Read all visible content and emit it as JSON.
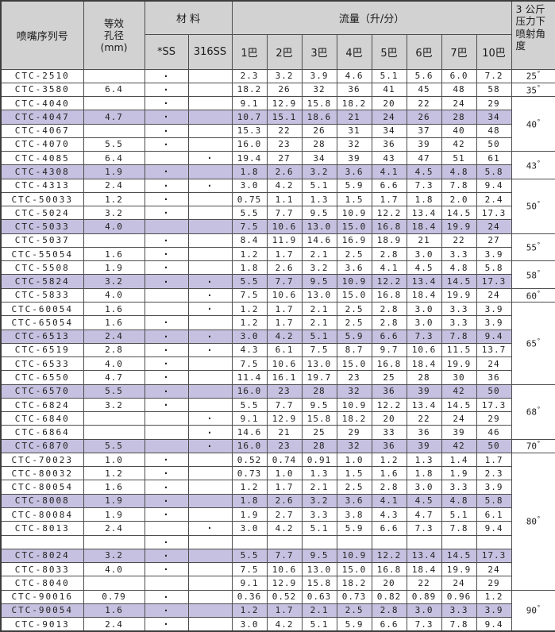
{
  "header": {
    "serial": "喷嘴序列号",
    "aperture": "等效\n孔径\n(mm)",
    "material": "材  料",
    "material_ss": "*SS",
    "material_316ss": "316SS",
    "flow": "流量（升/分）",
    "pressures": [
      "1巴",
      "2巴",
      "3巴",
      "4巴",
      "5巴",
      "6巴",
      "7巴",
      "10巴"
    ],
    "angle": "3 公斤\n压力下\n喷射角\n度"
  },
  "symbols": {
    "material_dot": "·",
    "degree": "°"
  },
  "colors": {
    "header_bg": "#d2d2d2",
    "highlight_bg": "#c6c1e0",
    "border": "#4d4d4d",
    "text": "#1f1f1f"
  },
  "angle_groups": [
    {
      "label": "25",
      "span": 1
    },
    {
      "label": "35",
      "span": 1
    },
    {
      "label": "40",
      "span": 4
    },
    {
      "label": "43",
      "span": 2
    },
    {
      "label": "50",
      "span": 4
    },
    {
      "label": "55",
      "span": 2
    },
    {
      "label": "58",
      "span": 2
    },
    {
      "label": "60",
      "span": 1
    },
    {
      "label": "65",
      "span": 6
    },
    {
      "label": "68",
      "span": 4
    },
    {
      "label": "70",
      "span": 1
    },
    {
      "label": "80",
      "span": 10
    },
    {
      "label": "90",
      "span": 3
    }
  ],
  "rows": [
    {
      "serial": "CTC-2510",
      "aperture": "",
      "ss": true,
      "ss316": false,
      "flows": [
        "2.3",
        "3.2",
        "3.9",
        "4.6",
        "5.1",
        "5.6",
        "6.0",
        "7.2"
      ],
      "highlight": false
    },
    {
      "serial": "CTC-3580",
      "aperture": "6.4",
      "ss": true,
      "ss316": false,
      "flows": [
        "18.2",
        "26",
        "32",
        "36",
        "41",
        "45",
        "48",
        "58"
      ],
      "highlight": false
    },
    {
      "serial": "CTC-4040",
      "aperture": "",
      "ss": true,
      "ss316": false,
      "flows": [
        "9.1",
        "12.9",
        "15.8",
        "18.2",
        "20",
        "22",
        "24",
        "29"
      ],
      "highlight": false
    },
    {
      "serial": "CTC-4047",
      "aperture": "4.7",
      "ss": true,
      "ss316": false,
      "flows": [
        "10.7",
        "15.1",
        "18.6",
        "21",
        "24",
        "26",
        "28",
        "34"
      ],
      "highlight": true
    },
    {
      "serial": "CTC-4067",
      "aperture": "",
      "ss": true,
      "ss316": false,
      "flows": [
        "15.3",
        "22",
        "26",
        "31",
        "34",
        "37",
        "40",
        "48"
      ],
      "highlight": false
    },
    {
      "serial": "CTC-4070",
      "aperture": "5.5",
      "ss": true,
      "ss316": false,
      "flows": [
        "16.0",
        "23",
        "28",
        "32",
        "36",
        "39",
        "42",
        "50"
      ],
      "highlight": false
    },
    {
      "serial": "CTC-4085",
      "aperture": "6.4",
      "ss": false,
      "ss316": true,
      "flows": [
        "19.4",
        "27",
        "34",
        "39",
        "43",
        "47",
        "51",
        "61"
      ],
      "highlight": false
    },
    {
      "serial": "CTC-4308",
      "aperture": "1.9",
      "ss": true,
      "ss316": false,
      "flows": [
        "1.8",
        "2.6",
        "3.2",
        "3.6",
        "4.1",
        "4.5",
        "4.8",
        "5.8"
      ],
      "highlight": true
    },
    {
      "serial": "CTC-4313",
      "aperture": "2.4",
      "ss": true,
      "ss316": true,
      "flows": [
        "3.0",
        "4.2",
        "5.1",
        "5.9",
        "6.6",
        "7.3",
        "7.8",
        "9.4"
      ],
      "highlight": false
    },
    {
      "serial": "CTC-50033",
      "aperture": "1.2",
      "ss": true,
      "ss316": false,
      "flows": [
        "0.75",
        "1.1",
        "1.3",
        "1.5",
        "1.7",
        "1.8",
        "2.0",
        "2.4"
      ],
      "highlight": false
    },
    {
      "serial": "CTC-5024",
      "aperture": "3.2",
      "ss": true,
      "ss316": false,
      "flows": [
        "5.5",
        "7.7",
        "9.5",
        "10.9",
        "12.2",
        "13.4",
        "14.5",
        "17.3"
      ],
      "highlight": false
    },
    {
      "serial": "CTC-5033",
      "aperture": "4.0",
      "ss": false,
      "ss316": false,
      "flows": [
        "7.5",
        "10.6",
        "13.0",
        "15.0",
        "16.8",
        "18.4",
        "19.9",
        "24"
      ],
      "highlight": true
    },
    {
      "serial": "CTC-5037",
      "aperture": "",
      "ss": true,
      "ss316": false,
      "flows": [
        "8.4",
        "11.9",
        "14.6",
        "16.9",
        "18.9",
        "21",
        "22",
        "27"
      ],
      "highlight": false
    },
    {
      "serial": "CTC-55054",
      "aperture": "1.6",
      "ss": true,
      "ss316": false,
      "flows": [
        "1.2",
        "1.7",
        "2.1",
        "2.5",
        "2.8",
        "3.0",
        "3.3",
        "3.9"
      ],
      "highlight": false
    },
    {
      "serial": "CTC-5508",
      "aperture": "1.9",
      "ss": true,
      "ss316": false,
      "flows": [
        "1.8",
        "2.6",
        "3.2",
        "3.6",
        "4.1",
        "4.5",
        "4.8",
        "5.8"
      ],
      "highlight": false
    },
    {
      "serial": "CTC-5824",
      "aperture": "3.2",
      "ss": true,
      "ss316": true,
      "flows": [
        "5.5",
        "7.7",
        "9.5",
        "10.9",
        "12.2",
        "13.4",
        "14.5",
        "17.3"
      ],
      "highlight": true
    },
    {
      "serial": "CTC-5833",
      "aperture": "4.0",
      "ss": false,
      "ss316": true,
      "flows": [
        "7.5",
        "10.6",
        "13.0",
        "15.0",
        "16.8",
        "18.4",
        "19.9",
        "24"
      ],
      "highlight": false
    },
    {
      "serial": "CTC-60054",
      "aperture": "1.6",
      "ss": false,
      "ss316": true,
      "flows": [
        "1.2",
        "1.7",
        "2.1",
        "2.5",
        "2.8",
        "3.0",
        "3.3",
        "3.9"
      ],
      "highlight": false
    },
    {
      "serial": "CTC-65054",
      "aperture": "1.6",
      "ss": true,
      "ss316": false,
      "flows": [
        "1.2",
        "1.7",
        "2.1",
        "2.5",
        "2.8",
        "3.0",
        "3.3",
        "3.9"
      ],
      "highlight": false
    },
    {
      "serial": "CTC-6513",
      "aperture": "2.4",
      "ss": true,
      "ss316": true,
      "flows": [
        "3.0",
        "4.2",
        "5.1",
        "5.9",
        "6.6",
        "7.3",
        "7.8",
        "9.4"
      ],
      "highlight": true
    },
    {
      "serial": "CTC-6519",
      "aperture": "2.8",
      "ss": true,
      "ss316": true,
      "flows": [
        "4.3",
        "6.1",
        "7.5",
        "8.7",
        "9.7",
        "10.6",
        "11.5",
        "13.7"
      ],
      "highlight": false
    },
    {
      "serial": "CTC-6533",
      "aperture": "4.0",
      "ss": true,
      "ss316": false,
      "flows": [
        "7.5",
        "10.6",
        "13.0",
        "15.0",
        "16.8",
        "18.4",
        "19.9",
        "24"
      ],
      "highlight": false
    },
    {
      "serial": "CTC-6550",
      "aperture": "4.7",
      "ss": true,
      "ss316": false,
      "flows": [
        "11.4",
        "16.1",
        "19.7",
        "23",
        "25",
        "28",
        "30",
        "36"
      ],
      "highlight": false
    },
    {
      "serial": "CTC-6570",
      "aperture": "5.5",
      "ss": true,
      "ss316": false,
      "flows": [
        "16.0",
        "23",
        "28",
        "32",
        "36",
        "39",
        "42",
        "50"
      ],
      "highlight": true
    },
    {
      "serial": "CTC-6824",
      "aperture": "3.2",
      "ss": true,
      "ss316": false,
      "flows": [
        "5.5",
        "7.7",
        "9.5",
        "10.9",
        "12.2",
        "13.4",
        "14.5",
        "17.3"
      ],
      "highlight": false
    },
    {
      "serial": "CTC-6840",
      "aperture": "",
      "ss": false,
      "ss316": true,
      "flows": [
        "9.1",
        "12.9",
        "15.8",
        "18.2",
        "20",
        "22",
        "24",
        "29"
      ],
      "highlight": false
    },
    {
      "serial": "CTC-6864",
      "aperture": "",
      "ss": false,
      "ss316": true,
      "flows": [
        "14.6",
        "21",
        "25",
        "29",
        "33",
        "36",
        "39",
        "46"
      ],
      "highlight": false
    },
    {
      "serial": "CTC-6870",
      "aperture": "5.5",
      "ss": false,
      "ss316": true,
      "flows": [
        "16.0",
        "23",
        "28",
        "32",
        "36",
        "39",
        "42",
        "50"
      ],
      "highlight": true
    },
    {
      "serial": "CTC-70023",
      "aperture": "1.0",
      "ss": true,
      "ss316": false,
      "flows": [
        "0.52",
        "0.74",
        "0.91",
        "1.0",
        "1.2",
        "1.3",
        "1.4",
        "1.7"
      ],
      "highlight": false
    },
    {
      "serial": "CTC-80032",
      "aperture": "1.2",
      "ss": true,
      "ss316": false,
      "flows": [
        "0.73",
        "1.0",
        "1.3",
        "1.5",
        "1.6",
        "1.8",
        "1.9",
        "2.3"
      ],
      "highlight": false
    },
    {
      "serial": "CTC-80054",
      "aperture": "1.6",
      "ss": true,
      "ss316": false,
      "flows": [
        "1.2",
        "1.7",
        "2.1",
        "2.5",
        "2.8",
        "3.0",
        "3.3",
        "3.9"
      ],
      "highlight": false
    },
    {
      "serial": "CTC-8008",
      "aperture": "1.9",
      "ss": true,
      "ss316": false,
      "flows": [
        "1.8",
        "2.6",
        "3.2",
        "3.6",
        "4.1",
        "4.5",
        "4.8",
        "5.8"
      ],
      "highlight": true
    },
    {
      "serial": "CTC-80084",
      "aperture": "1.9",
      "ss": true,
      "ss316": false,
      "flows": [
        "1.9",
        "2.7",
        "3.3",
        "3.8",
        "4.3",
        "4.7",
        "5.1",
        "6.1"
      ],
      "highlight": false
    },
    {
      "serial": "CTC-8013",
      "aperture": "2.4",
      "ss": false,
      "ss316": true,
      "flows": [
        "3.0",
        "4.2",
        "5.1",
        "5.9",
        "6.6",
        "7.3",
        "7.8",
        "9.4"
      ],
      "highlight": false
    },
    {
      "serial": "",
      "aperture": "",
      "ss": true,
      "ss316": false,
      "flows": [
        "",
        "",
        "",
        "",
        "",
        "",
        "",
        ""
      ],
      "highlight": false
    },
    {
      "serial": "CTC-8024",
      "aperture": "3.2",
      "ss": true,
      "ss316": false,
      "flows": [
        "5.5",
        "7.7",
        "9.5",
        "10.9",
        "12.2",
        "13.4",
        "14.5",
        "17.3"
      ],
      "highlight": true
    },
    {
      "serial": "CTC-8033",
      "aperture": "4.0",
      "ss": true,
      "ss316": false,
      "flows": [
        "7.5",
        "10.6",
        "13.0",
        "15.0",
        "16.8",
        "18.4",
        "19.9",
        "24"
      ],
      "highlight": false
    },
    {
      "serial": "CTC-8040",
      "aperture": "",
      "ss": false,
      "ss316": false,
      "flows": [
        "9.1",
        "12.9",
        "15.8",
        "18.2",
        "20",
        "22",
        "24",
        "29"
      ],
      "highlight": false
    },
    {
      "serial": "CTC-90016",
      "aperture": "0.79",
      "ss": true,
      "ss316": false,
      "flows": [
        "0.36",
        "0.52",
        "0.63",
        "0.73",
        "0.82",
        "0.89",
        "0.96",
        "1.2"
      ],
      "highlight": false
    },
    {
      "serial": "CTC-90054",
      "aperture": "1.6",
      "ss": true,
      "ss316": false,
      "flows": [
        "1.2",
        "1.7",
        "2.1",
        "2.5",
        "2.8",
        "3.0",
        "3.3",
        "3.9"
      ],
      "highlight": true
    },
    {
      "serial": "CTC-9013",
      "aperture": "2.4",
      "ss": true,
      "ss316": false,
      "flows": [
        "3.0",
        "4.2",
        "5.1",
        "5.9",
        "6.6",
        "7.3",
        "7.8",
        "9.4"
      ],
      "highlight": false
    }
  ]
}
